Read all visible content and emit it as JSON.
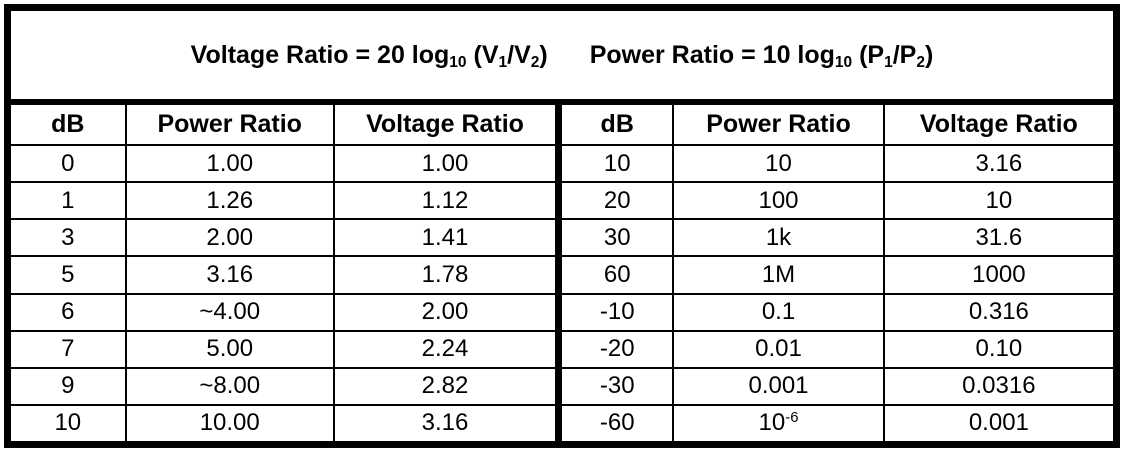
{
  "colors": {
    "border": "#000000",
    "background": "#ffffff",
    "text": "#000000"
  },
  "title": {
    "formulas": [
      {
        "name": "voltage-ratio-formula",
        "segments": [
          [
            "t",
            "Voltage Ratio = 20 log"
          ],
          [
            "sub",
            "10"
          ],
          [
            "t",
            " (V"
          ],
          [
            "sub",
            "1"
          ],
          [
            "t",
            "/V"
          ],
          [
            "sub",
            "2"
          ],
          [
            "t",
            ")"
          ]
        ]
      },
      {
        "name": "power-ratio-formula",
        "segments": [
          [
            "t",
            "Power Ratio = 10 log"
          ],
          [
            "sub",
            "10"
          ],
          [
            "t",
            " (P"
          ],
          [
            "sub",
            "1"
          ],
          [
            "t",
            "/P"
          ],
          [
            "sub",
            "2"
          ],
          [
            "t",
            ")"
          ]
        ]
      }
    ]
  },
  "table": {
    "left": {
      "headers": [
        "dB",
        "Power Ratio",
        "Voltage Ratio"
      ],
      "rows": [
        [
          "0",
          "1.00",
          "1.00"
        ],
        [
          "1",
          "1.26",
          "1.12"
        ],
        [
          "3",
          "2.00",
          "1.41"
        ],
        [
          "5",
          "3.16",
          "1.78"
        ],
        [
          "6",
          "~4.00",
          "2.00"
        ],
        [
          "7",
          "5.00",
          "2.24"
        ],
        [
          "9",
          "~8.00",
          "2.82"
        ],
        [
          "10",
          "10.00",
          "3.16"
        ]
      ]
    },
    "right": {
      "headers": [
        "dB",
        "Power Ratio",
        "Voltage Ratio"
      ],
      "rows": [
        [
          "10",
          "10",
          "3.16"
        ],
        [
          "20",
          "100",
          "10"
        ],
        [
          "30",
          "1k",
          "31.6"
        ],
        [
          "60",
          "1M",
          "1000"
        ],
        [
          "-10",
          "0.1",
          "0.316"
        ],
        [
          "-20",
          "0.01",
          "0.10"
        ],
        [
          "-30",
          "0.001",
          "0.0316"
        ],
        [
          "-60",
          [
            [
              "t",
              "10"
            ],
            [
              "sup",
              "-6"
            ]
          ],
          "0.001"
        ]
      ]
    }
  }
}
